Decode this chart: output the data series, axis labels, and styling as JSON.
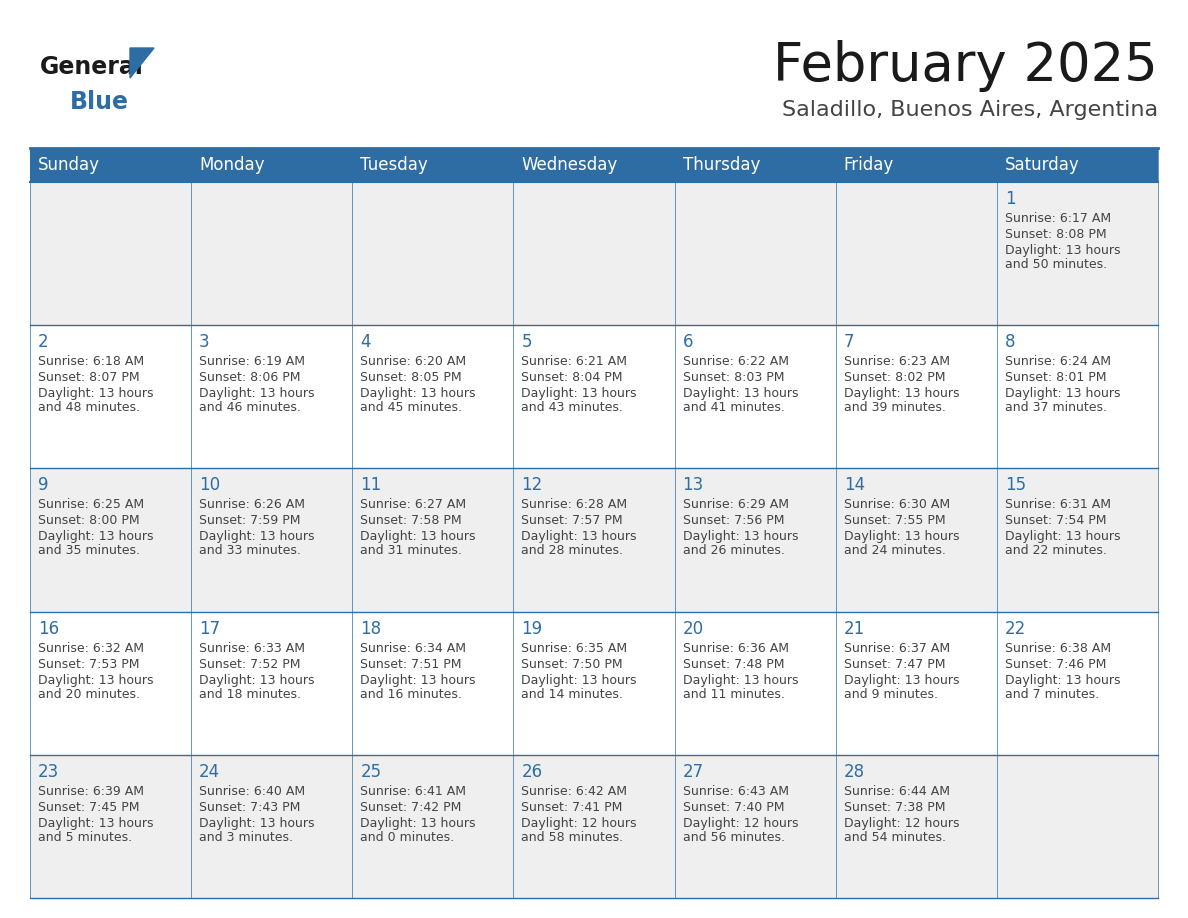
{
  "title": "February 2025",
  "subtitle": "Saladillo, Buenos Aires, Argentina",
  "header_bg": "#2E6DA4",
  "header_text_color": "#FFFFFF",
  "day_names": [
    "Sunday",
    "Monday",
    "Tuesday",
    "Wednesday",
    "Thursday",
    "Friday",
    "Saturday"
  ],
  "background_color": "#FFFFFF",
  "cell_bg_even": "#EFEFEF",
  "cell_bg_odd": "#FFFFFF",
  "border_color": "#2E6DA4",
  "title_color": "#1a1a1a",
  "subtitle_color": "#444444",
  "date_color": "#2E6DA4",
  "text_color": "#444444",
  "logo_color": "#1a1a1a",
  "logo_blue_color": "#2E6DA4",
  "calendar_data": [
    [
      null,
      null,
      null,
      null,
      null,
      null,
      {
        "day": "1",
        "sunrise": "6:17 AM",
        "sunset": "8:08 PM",
        "daylight_line1": "13 hours",
        "daylight_line2": "and 50 minutes."
      }
    ],
    [
      {
        "day": "2",
        "sunrise": "6:18 AM",
        "sunset": "8:07 PM",
        "daylight_line1": "13 hours",
        "daylight_line2": "and 48 minutes."
      },
      {
        "day": "3",
        "sunrise": "6:19 AM",
        "sunset": "8:06 PM",
        "daylight_line1": "13 hours",
        "daylight_line2": "and 46 minutes."
      },
      {
        "day": "4",
        "sunrise": "6:20 AM",
        "sunset": "8:05 PM",
        "daylight_line1": "13 hours",
        "daylight_line2": "and 45 minutes."
      },
      {
        "day": "5",
        "sunrise": "6:21 AM",
        "sunset": "8:04 PM",
        "daylight_line1": "13 hours",
        "daylight_line2": "and 43 minutes."
      },
      {
        "day": "6",
        "sunrise": "6:22 AM",
        "sunset": "8:03 PM",
        "daylight_line1": "13 hours",
        "daylight_line2": "and 41 minutes."
      },
      {
        "day": "7",
        "sunrise": "6:23 AM",
        "sunset": "8:02 PM",
        "daylight_line1": "13 hours",
        "daylight_line2": "and 39 minutes."
      },
      {
        "day": "8",
        "sunrise": "6:24 AM",
        "sunset": "8:01 PM",
        "daylight_line1": "13 hours",
        "daylight_line2": "and 37 minutes."
      }
    ],
    [
      {
        "day": "9",
        "sunrise": "6:25 AM",
        "sunset": "8:00 PM",
        "daylight_line1": "13 hours",
        "daylight_line2": "and 35 minutes."
      },
      {
        "day": "10",
        "sunrise": "6:26 AM",
        "sunset": "7:59 PM",
        "daylight_line1": "13 hours",
        "daylight_line2": "and 33 minutes."
      },
      {
        "day": "11",
        "sunrise": "6:27 AM",
        "sunset": "7:58 PM",
        "daylight_line1": "13 hours",
        "daylight_line2": "and 31 minutes."
      },
      {
        "day": "12",
        "sunrise": "6:28 AM",
        "sunset": "7:57 PM",
        "daylight_line1": "13 hours",
        "daylight_line2": "and 28 minutes."
      },
      {
        "day": "13",
        "sunrise": "6:29 AM",
        "sunset": "7:56 PM",
        "daylight_line1": "13 hours",
        "daylight_line2": "and 26 minutes."
      },
      {
        "day": "14",
        "sunrise": "6:30 AM",
        "sunset": "7:55 PM",
        "daylight_line1": "13 hours",
        "daylight_line2": "and 24 minutes."
      },
      {
        "day": "15",
        "sunrise": "6:31 AM",
        "sunset": "7:54 PM",
        "daylight_line1": "13 hours",
        "daylight_line2": "and 22 minutes."
      }
    ],
    [
      {
        "day": "16",
        "sunrise": "6:32 AM",
        "sunset": "7:53 PM",
        "daylight_line1": "13 hours",
        "daylight_line2": "and 20 minutes."
      },
      {
        "day": "17",
        "sunrise": "6:33 AM",
        "sunset": "7:52 PM",
        "daylight_line1": "13 hours",
        "daylight_line2": "and 18 minutes."
      },
      {
        "day": "18",
        "sunrise": "6:34 AM",
        "sunset": "7:51 PM",
        "daylight_line1": "13 hours",
        "daylight_line2": "and 16 minutes."
      },
      {
        "day": "19",
        "sunrise": "6:35 AM",
        "sunset": "7:50 PM",
        "daylight_line1": "13 hours",
        "daylight_line2": "and 14 minutes."
      },
      {
        "day": "20",
        "sunrise": "6:36 AM",
        "sunset": "7:48 PM",
        "daylight_line1": "13 hours",
        "daylight_line2": "and 11 minutes."
      },
      {
        "day": "21",
        "sunrise": "6:37 AM",
        "sunset": "7:47 PM",
        "daylight_line1": "13 hours",
        "daylight_line2": "and 9 minutes."
      },
      {
        "day": "22",
        "sunrise": "6:38 AM",
        "sunset": "7:46 PM",
        "daylight_line1": "13 hours",
        "daylight_line2": "and 7 minutes."
      }
    ],
    [
      {
        "day": "23",
        "sunrise": "6:39 AM",
        "sunset": "7:45 PM",
        "daylight_line1": "13 hours",
        "daylight_line2": "and 5 minutes."
      },
      {
        "day": "24",
        "sunrise": "6:40 AM",
        "sunset": "7:43 PM",
        "daylight_line1": "13 hours",
        "daylight_line2": "and 3 minutes."
      },
      {
        "day": "25",
        "sunrise": "6:41 AM",
        "sunset": "7:42 PM",
        "daylight_line1": "13 hours",
        "daylight_line2": "and 0 minutes."
      },
      {
        "day": "26",
        "sunrise": "6:42 AM",
        "sunset": "7:41 PM",
        "daylight_line1": "12 hours",
        "daylight_line2": "and 58 minutes."
      },
      {
        "day": "27",
        "sunrise": "6:43 AM",
        "sunset": "7:40 PM",
        "daylight_line1": "12 hours",
        "daylight_line2": "and 56 minutes."
      },
      {
        "day": "28",
        "sunrise": "6:44 AM",
        "sunset": "7:38 PM",
        "daylight_line1": "12 hours",
        "daylight_line2": "and 54 minutes."
      },
      null
    ]
  ]
}
